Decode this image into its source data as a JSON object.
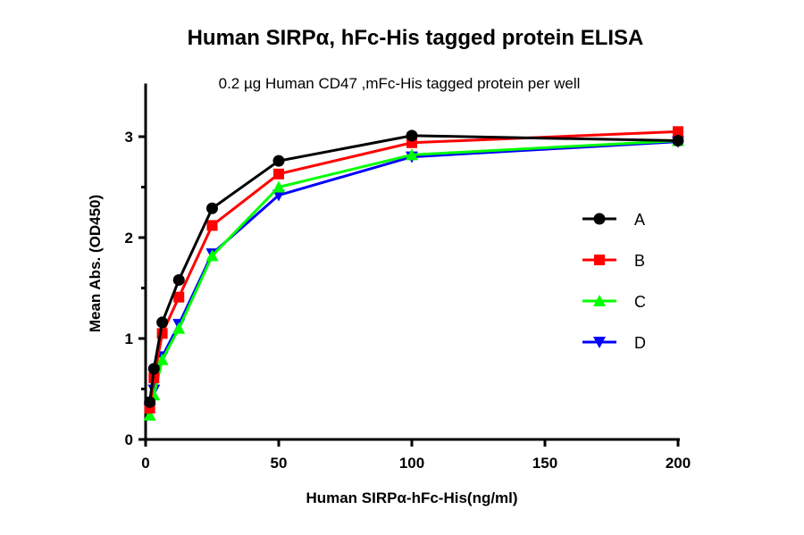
{
  "chart_data": {
    "type": "line",
    "title": "Human SIRPα, hFc-His tagged protein ELISA",
    "subtitle": "0.2 µg Human CD47 ,mFc-His tagged protein per well",
    "xlabel": "Human SIRPα-hFc-His(ng/ml)",
    "ylabel": "Mean Abs. (OD450)",
    "xlim": [
      0,
      200
    ],
    "ylim": [
      0,
      3.5
    ],
    "xticks": [
      0,
      50,
      100,
      150,
      200
    ],
    "yticks": [
      0,
      1,
      2,
      3
    ],
    "grid": false,
    "legend_placement": "right",
    "x": [
      1.5625,
      3.125,
      6.25,
      12.5,
      25,
      50,
      100,
      200
    ],
    "series": [
      {
        "name": "A",
        "color": "#000000",
        "marker": "circle",
        "values": [
          0.37,
          0.7,
          1.16,
          1.58,
          2.29,
          2.76,
          3.01,
          2.96
        ]
      },
      {
        "name": "B",
        "color": "#ff0000",
        "marker": "square",
        "values": [
          0.31,
          0.61,
          1.05,
          1.41,
          2.12,
          2.63,
          2.94,
          3.05
        ]
      },
      {
        "name": "C",
        "color": "#00ff00",
        "marker": "triangle-up",
        "values": [
          0.24,
          0.44,
          0.79,
          1.1,
          1.82,
          2.5,
          2.82,
          2.96
        ]
      },
      {
        "name": "D",
        "color": "#0000ff",
        "marker": "triangle-down",
        "values": [
          0.3,
          0.49,
          0.82,
          1.14,
          1.84,
          2.42,
          2.8,
          2.95
        ]
      }
    ]
  }
}
